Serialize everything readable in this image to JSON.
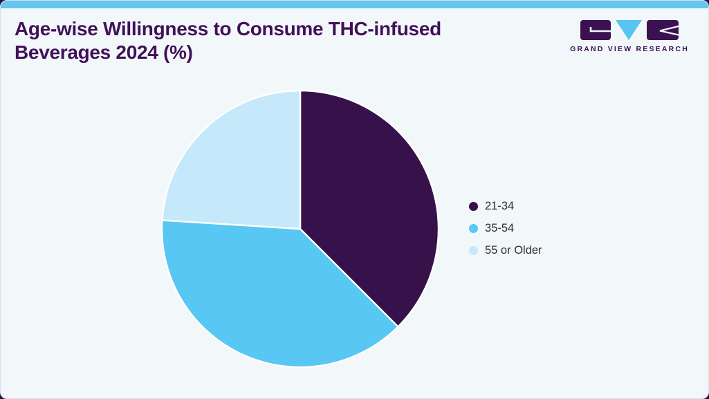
{
  "page": {
    "title_line1": "Age-wise Willingness to Consume THC-infused",
    "title_line2": "Beverages 2024 (%)"
  },
  "logo": {
    "caption": "GRAND VIEW RESEARCH",
    "brand_purple": "#3b1152",
    "brand_blue": "#56c5f2"
  },
  "theme": {
    "card_background": "#f2f7fa",
    "top_bar_color": "#63c7f0",
    "title_color": "#411158",
    "legend_text_color": "#2e2e2e",
    "slice_separator_color": "#ffffff"
  },
  "chart_data": {
    "type": "pie",
    "title": "Age-wise Willingness to Consume THC-infused Beverages 2024 (%)",
    "categories": [
      "21-34",
      "35-54",
      "55 or Older"
    ],
    "values": [
      37.5,
      38.5,
      24
    ],
    "unit": "%",
    "colors": [
      "#36114a",
      "#58c7f3",
      "#c5e9fa"
    ],
    "start_angle_deg": 0,
    "direction": "clockwise",
    "legend_position": "right",
    "data_labels_shown": false
  }
}
